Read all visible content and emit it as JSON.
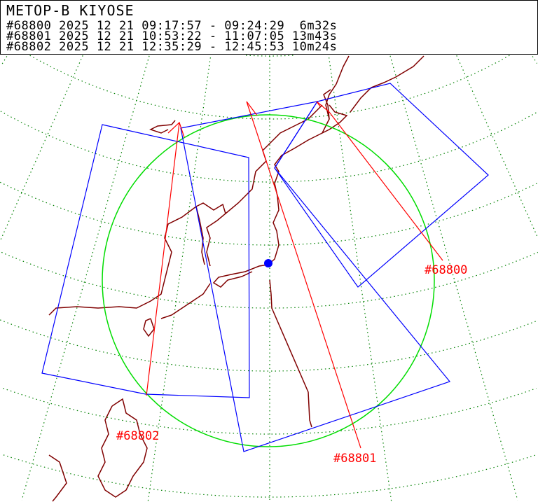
{
  "header": {
    "title": "METOP-B   KIYOSE",
    "passes": [
      {
        "id": "#68800",
        "text": "#68800 2025 12 21 09:17:57 - 09:24:29  6m32s"
      },
      {
        "id": "#68801",
        "text": "#68801 2025 12 21 10:53:22 - 11:07:05 13m43s"
      },
      {
        "id": "#68802",
        "text": "#68802 2025 12 21 12:35:29 - 12:45:53 10m24s"
      }
    ]
  },
  "map": {
    "labels": [
      "#68800",
      "#68801",
      "#68802"
    ],
    "station": "KIYOSE",
    "colors": {
      "swath": "#0000ff",
      "track": "#ff0000",
      "coverage": "#00dd00",
      "graticule": "#008000",
      "coast": "#800000",
      "station": "#0000ff"
    }
  }
}
